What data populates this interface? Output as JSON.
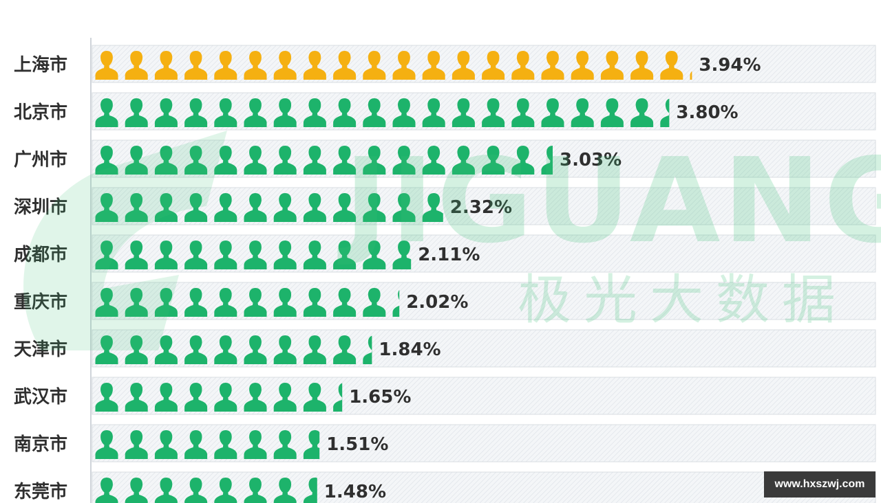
{
  "title": "",
  "watermark": {
    "brand_en": "JIGUANG",
    "brand_cn": "极光大数据"
  },
  "site_badge": "www.hxszwj.com",
  "colors": {
    "highlight": "#f5b011",
    "normal": "#1db36b",
    "track_border": "#d8dde2",
    "track_fill": "#f3f5f7"
  },
  "chart_data": {
    "type": "bar",
    "title": "",
    "xlabel": "",
    "ylabel": "",
    "categories": [
      "上海市",
      "北京市",
      "广州市",
      "深圳市",
      "成都市",
      "重庆市",
      "天津市",
      "武汉市",
      "南京市",
      "东莞市"
    ],
    "values": [
      3.94,
      3.8,
      3.03,
      2.32,
      2.11,
      2.02,
      1.84,
      1.65,
      1.51,
      1.48
    ],
    "labels": [
      "3.94%",
      "3.80%",
      "3.03%",
      "2.32%",
      "2.11%",
      "2.02%",
      "1.84%",
      "1.65%",
      "1.51%",
      "1.48%"
    ],
    "icon_units": [
      20.1,
      19.4,
      15.5,
      11.9,
      10.8,
      10.3,
      9.4,
      8.4,
      7.7,
      7.6
    ],
    "highlight_index": 0,
    "icon": "person-icon"
  }
}
